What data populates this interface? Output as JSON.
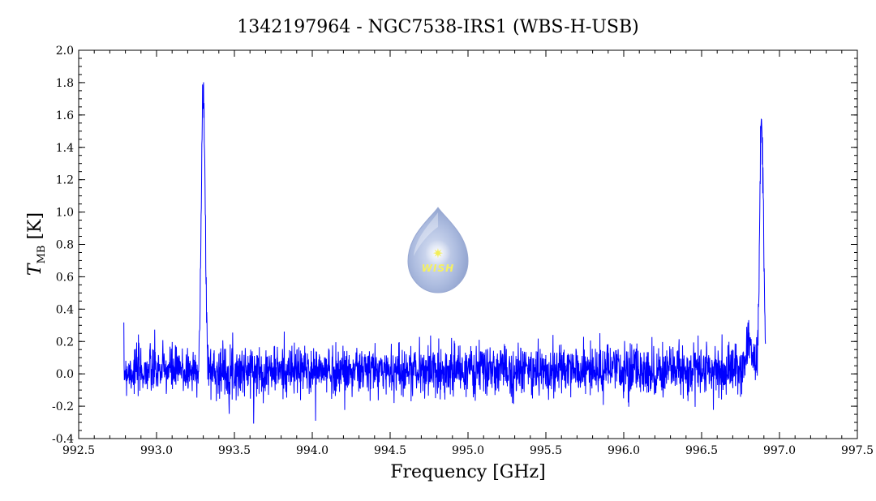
{
  "chart_data": {
    "type": "line",
    "title": "1342197964 - NGC7538-IRS1 (WBS-H-USB)",
    "xlabel": "Frequency [GHz]",
    "ylabel": "T",
    "ylabel_sub": "MB",
    "ylabel_unit": " [K]",
    "xlim": [
      992.5,
      997.5
    ],
    "ylim": [
      -0.4,
      2.0
    ],
    "x_ticks": [
      992.5,
      993.0,
      993.5,
      994.0,
      994.5,
      995.0,
      995.5,
      996.0,
      996.5,
      997.0,
      997.5
    ],
    "x_tick_labels": [
      "992.5",
      "993.0",
      "993.5",
      "994.0",
      "994.5",
      "995.0",
      "995.5",
      "996.0",
      "996.5",
      "997.0",
      "997.5"
    ],
    "y_ticks": [
      -0.4,
      -0.2,
      0.0,
      0.2,
      0.4,
      0.6,
      0.8,
      1.0,
      1.2,
      1.4,
      1.6,
      1.8,
      2.0
    ],
    "y_tick_labels": [
      "-0.4",
      "-0.2",
      "0.0",
      "0.2",
      "0.4",
      "0.6",
      "0.8",
      "1.0",
      "1.2",
      "1.4",
      "1.6",
      "1.8",
      "2.0"
    ],
    "grid": false,
    "series_color": "#0000ff",
    "series": [
      {
        "x_range": [
          992.79,
          996.91
        ],
        "noise_rms": 0.09,
        "baseline": 0.02,
        "features": [
          {
            "center": 993.3,
            "peak": 1.75,
            "width": 0.012
          },
          {
            "center": 996.885,
            "peak": 1.53,
            "width": 0.012
          },
          {
            "center": 996.805,
            "peak": 0.2,
            "width": 0.02
          }
        ]
      }
    ]
  },
  "logo": {
    "text": "WISH",
    "color": "#a9b9de"
  }
}
